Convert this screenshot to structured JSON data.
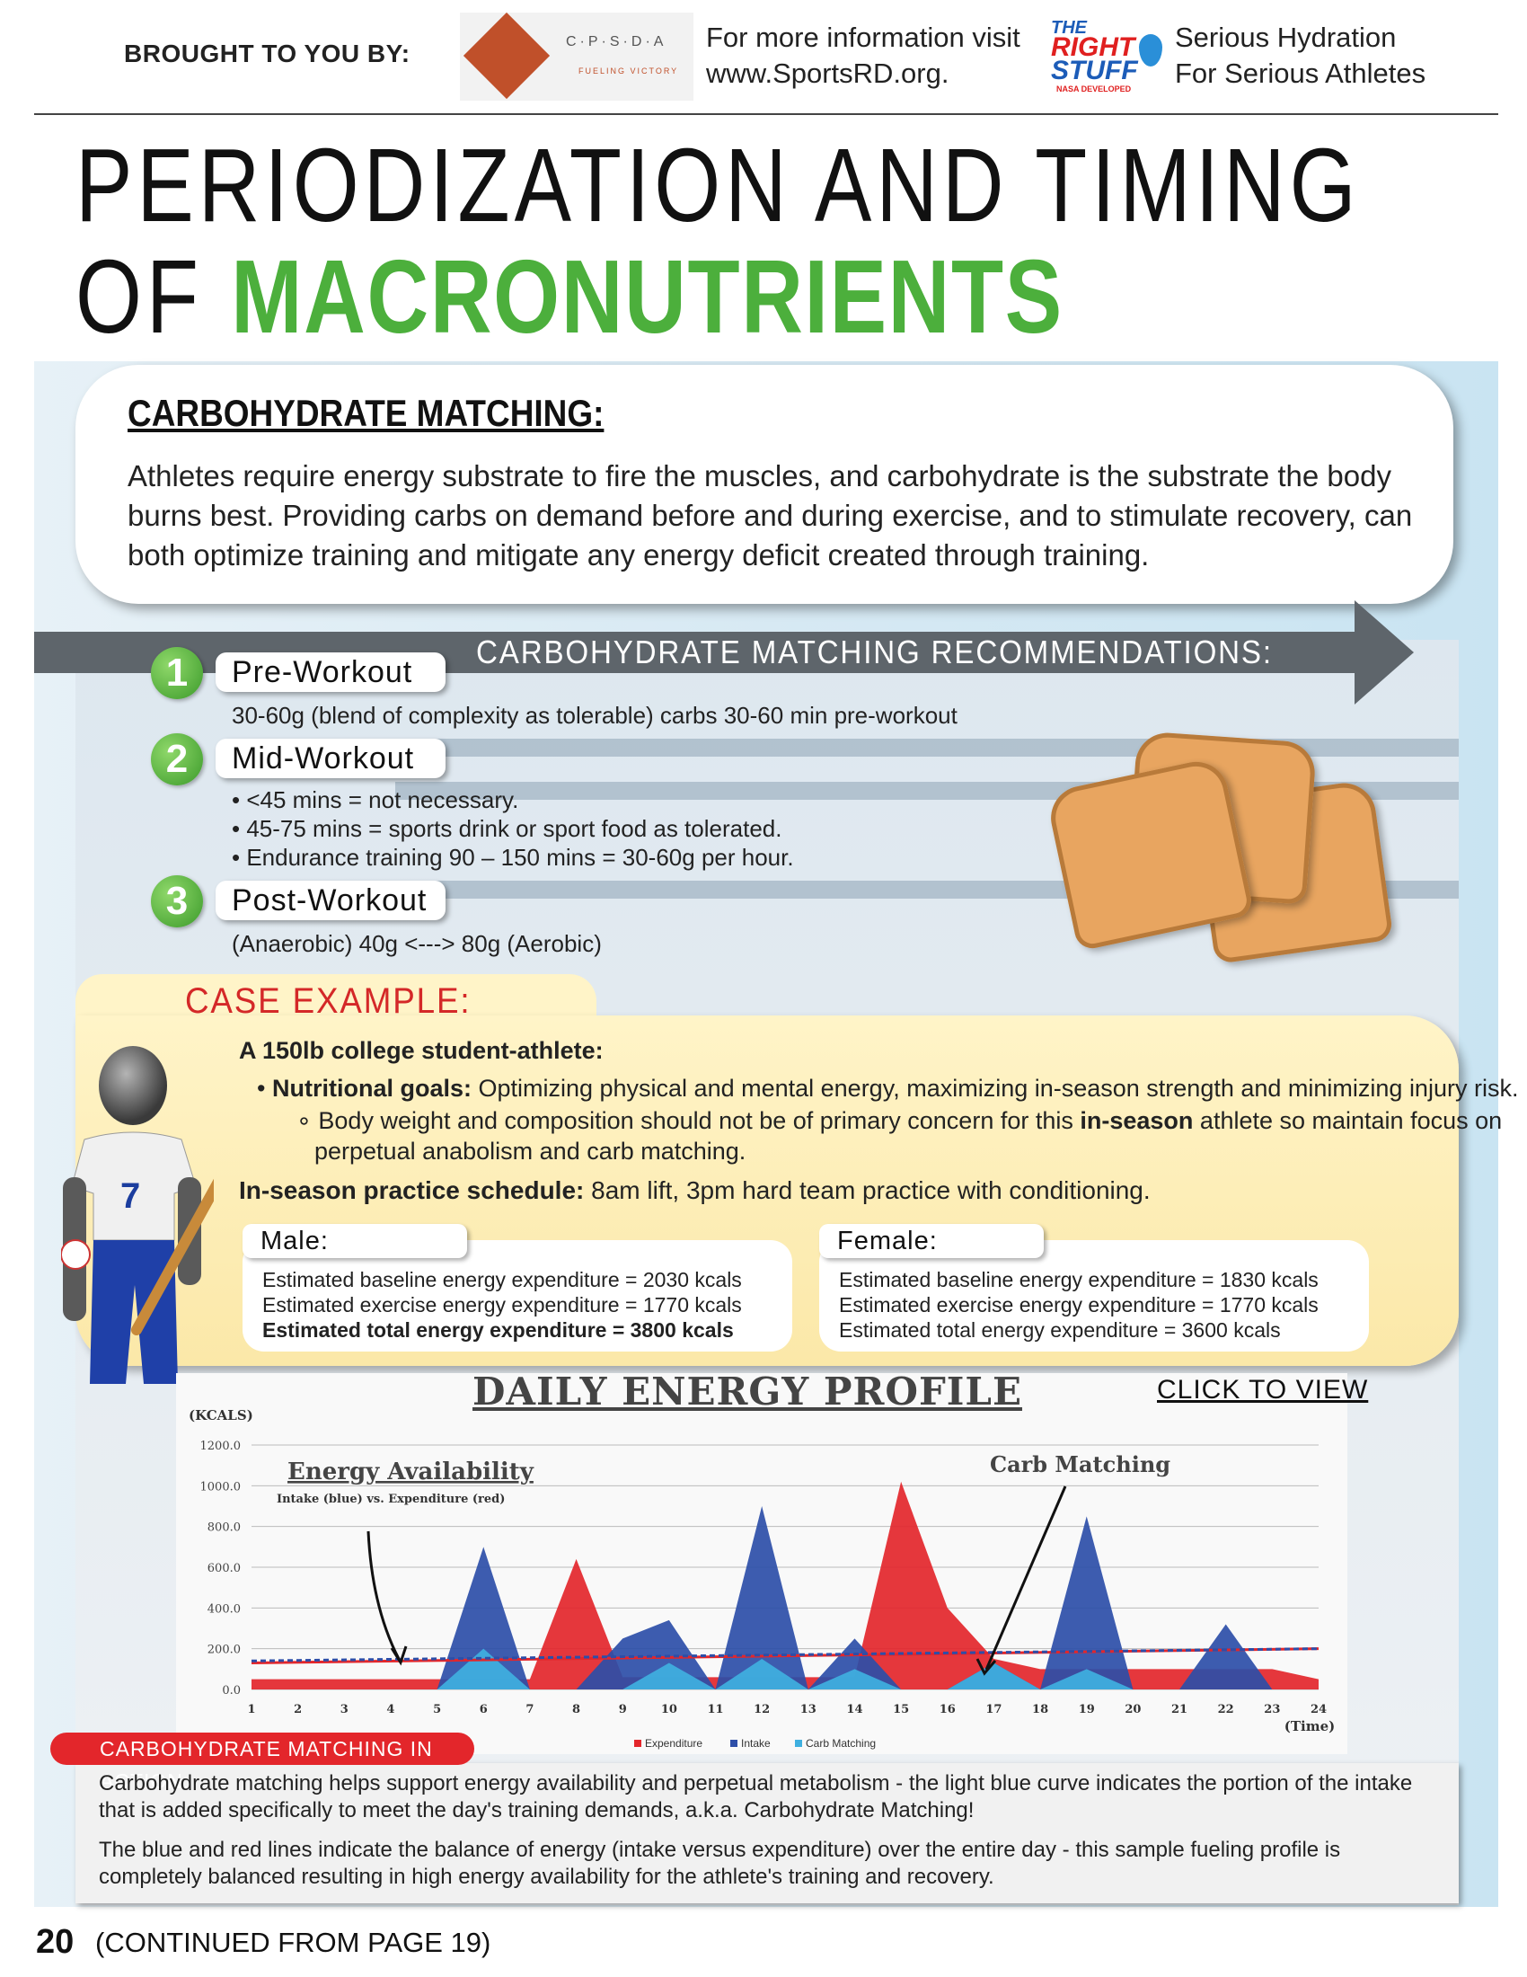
{
  "header": {
    "brought": "BROUGHT TO YOU BY:",
    "cpsda_logo_text": "C·P·S·D·A",
    "cpsda_logo_sub": "FUELING VICTORY",
    "info_line1": "For more information visit",
    "info_line2": "www.SportsRD.org.",
    "rs_logo_the": "THE",
    "rs_logo_right": "RIGHT",
    "rs_logo_stuff": "STUFF",
    "rs_logo_nasa": "NASA DEVELOPED",
    "tag_line1": "Serious Hydration",
    "tag_line2": "For Serious Athletes"
  },
  "title": {
    "line1": "PERIODIZATION AND TIMING",
    "line2_prefix": "OF ",
    "line2_green": "MACRONUTRIENTS"
  },
  "carb": {
    "heading": "CARBOHYDRATE MATCHING:",
    "body": "Athletes require energy substrate to fire the muscles, and carbohydrate is the substrate the body burns best. Providing carbs on demand before and during exercise, and to stimulate recovery, can both optimize training and mitigate any energy deficit created through training."
  },
  "recommendations": {
    "title": "CARBOHYDRATE MATCHING RECOMMENDATIONS:",
    "steps": [
      {
        "num": "1",
        "label": "Pre-Workout",
        "lines": [
          "30-60g (blend of complexity as tolerable) carbs 30-60 min pre-workout"
        ]
      },
      {
        "num": "2",
        "label": "Mid-Workout",
        "lines": [
          "• <45 mins = not necessary.",
          "• 45-75 mins = sports drink or sport food as tolerated.",
          "• Endurance training 90 – 150 mins = 30-60g per hour."
        ]
      },
      {
        "num": "3",
        "label": "Post-Workout",
        "lines": [
          "(Anaerobic) 40g <---> 80g (Aerobic)"
        ]
      }
    ]
  },
  "case": {
    "title": "CASE EXAMPLE:",
    "intro": "A 150lb college student-athlete:",
    "goal_label": "Nutritional goals:",
    "goal_text": " Optimizing physical and mental energy, maximizing in-season strength and minimizing injury risk.",
    "sub_text1": "Body weight and composition should not be of primary concern for this ",
    "sub_text_bold": "in-season",
    "sub_text2": " athlete so maintain focus on",
    "sub_text3": "perpetual anabolism and carb matching.",
    "schedule_label": "In-season practice schedule:",
    "schedule_text": " 8am lift, 3pm hard team practice with conditioning.",
    "jersey_number": "7",
    "male": {
      "label": "Male:",
      "lines": [
        "Estimated baseline energy expenditure = 2030 kcals",
        "Estimated exercise energy expenditure = 1770 kcals",
        "Estimated total energy expenditure = 3800 kcals"
      ]
    },
    "female": {
      "label": "Female:",
      "lines": [
        "Estimated baseline energy expenditure = 1830 kcals",
        "Estimated exercise energy expenditure = 1770 kcals",
        "Estimated total energy expenditure = 3600 kcals"
      ]
    }
  },
  "chart": {
    "title": "DAILY ENERGY PROFILE",
    "click": "CLICK TO VIEW",
    "annotation1_title": "Energy Availability",
    "annotation1_sub": "Intake (blue) vs. Expenditure (red)",
    "annotation2": "Carb Matching"
  },
  "chart_data": {
    "type": "area",
    "title": "DAILY ENERGY PROFILE",
    "ylabel": "(KCALS)",
    "xlabel": "(Time)",
    "ylim": [
      0,
      1200
    ],
    "yticks": [
      "0.0",
      "200.0",
      "400.0",
      "600.0",
      "800.0",
      "1000.0",
      "1200.0"
    ],
    "x": [
      1,
      2,
      3,
      4,
      5,
      6,
      7,
      8,
      9,
      10,
      11,
      12,
      13,
      14,
      15,
      16,
      17,
      18,
      19,
      20,
      21,
      22,
      23,
      24
    ],
    "series": [
      {
        "name": "Expenditure",
        "color": "#e3262b",
        "values": [
          50,
          50,
          50,
          50,
          50,
          50,
          50,
          640,
          60,
          60,
          60,
          60,
          60,
          60,
          1020,
          400,
          150,
          100,
          100,
          100,
          100,
          100,
          100,
          50
        ]
      },
      {
        "name": "Intake",
        "color": "#2d4ea8",
        "values": [
          0,
          0,
          0,
          0,
          0,
          700,
          0,
          0,
          250,
          340,
          0,
          900,
          0,
          250,
          0,
          0,
          130,
          0,
          850,
          0,
          0,
          320,
          0,
          0
        ]
      },
      {
        "name": "Carb Matching",
        "color": "#3fb0e0",
        "values": [
          0,
          0,
          0,
          0,
          0,
          200,
          0,
          0,
          0,
          130,
          0,
          150,
          0,
          100,
          0,
          0,
          130,
          0,
          100,
          0,
          0,
          0,
          0,
          0
        ]
      }
    ],
    "lines": [
      {
        "name": "Expenditure balance",
        "color": "#e3262b",
        "from": 130,
        "to": 200
      },
      {
        "name": "Intake balance",
        "color": "#2d4ea8",
        "from": 140,
        "to": 200
      }
    ],
    "legend": "bottom"
  },
  "bottom": {
    "pill": "CARBOHYDRATE MATCHING IN ACTION:",
    "p1": "Carbohydrate matching helps support energy availability and perpetual metabolism - the light blue curve indicates the portion of the intake that is added specifically to meet the day's training demands, a.k.a. Carbohydrate Matching!",
    "p2": "The blue and red lines indicate the balance of energy (intake versus expenditure) over the entire day - this sample fueling profile is completely balanced resulting in high energy availability for the athlete's training and recovery."
  },
  "footer": {
    "page": "20",
    "continued": "(CONTINUED FROM PAGE 19)"
  }
}
